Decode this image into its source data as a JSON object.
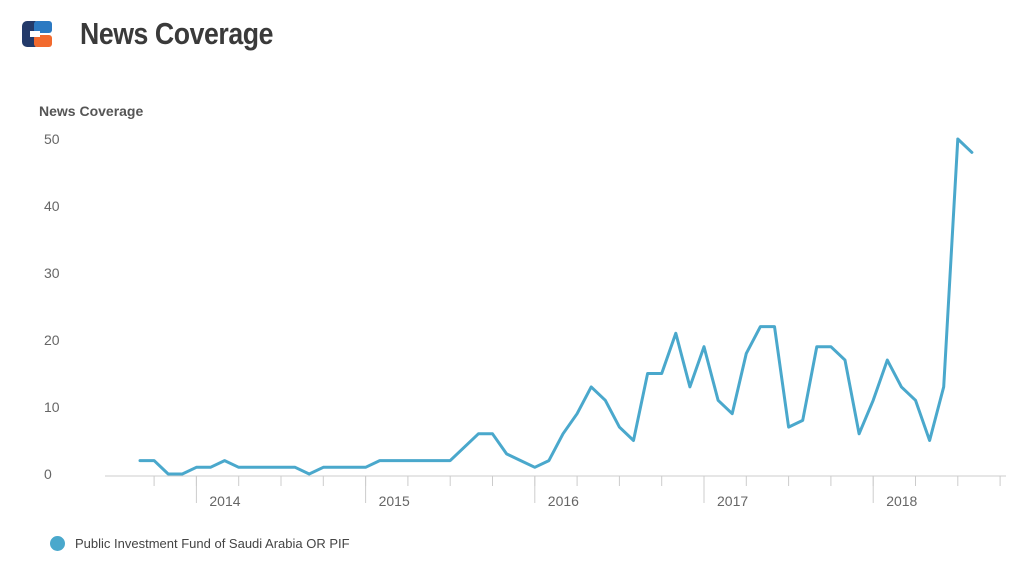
{
  "header": {
    "title": "News Coverage",
    "logo_icon": "brand-logo-icon",
    "logo_colors": [
      "#233a6a",
      "#2b79c2",
      "#f26a2e"
    ]
  },
  "colors": {
    "series": "#4aa8cc",
    "axis": "#cccccc",
    "title": "#3a3a3a"
  },
  "chart_data": {
    "type": "line",
    "title": "",
    "ylabel": "News Coverage",
    "xlabel": "",
    "ylim": [
      0,
      50
    ],
    "yticks": [
      0,
      10,
      20,
      30,
      40,
      50
    ],
    "xtick_labels": [
      "2014",
      "2015",
      "2016",
      "2017",
      "2018"
    ],
    "grid": false,
    "legend_position": "bottom-left",
    "series": [
      {
        "name": "Public Investment Fund of Saudi Arabia OR PIF",
        "color": "#4aa8cc",
        "x": [
          "2013-09",
          "2013-10",
          "2013-11",
          "2013-12",
          "2014-01",
          "2014-02",
          "2014-03",
          "2014-04",
          "2014-05",
          "2014-06",
          "2014-07",
          "2014-08",
          "2014-09",
          "2014-10",
          "2014-11",
          "2014-12",
          "2015-01",
          "2015-02",
          "2015-03",
          "2015-04",
          "2015-05",
          "2015-06",
          "2015-07",
          "2015-08",
          "2015-09",
          "2015-10",
          "2015-11",
          "2015-12",
          "2016-01",
          "2016-02",
          "2016-03",
          "2016-04",
          "2016-05",
          "2016-06",
          "2016-07",
          "2016-08",
          "2016-09",
          "2016-10",
          "2016-11",
          "2016-12",
          "2017-01",
          "2017-02",
          "2017-03",
          "2017-04",
          "2017-05",
          "2017-06",
          "2017-07",
          "2017-08",
          "2017-09",
          "2017-10",
          "2017-11",
          "2017-12",
          "2018-01",
          "2018-02",
          "2018-03",
          "2018-04",
          "2018-05",
          "2018-06",
          "2018-07",
          "2018-08"
        ],
        "values": [
          2,
          2,
          0,
          0,
          1,
          1,
          2,
          1,
          1,
          1,
          1,
          1,
          0,
          1,
          1,
          1,
          1,
          2,
          2,
          2,
          2,
          2,
          2,
          4,
          6,
          6,
          3,
          2,
          1,
          2,
          6,
          9,
          13,
          11,
          7,
          5,
          15,
          15,
          21,
          13,
          19,
          11,
          9,
          18,
          22,
          22,
          7,
          8,
          19,
          19,
          17,
          6,
          11,
          17,
          13,
          11,
          5,
          13,
          50,
          48
        ]
      }
    ]
  }
}
